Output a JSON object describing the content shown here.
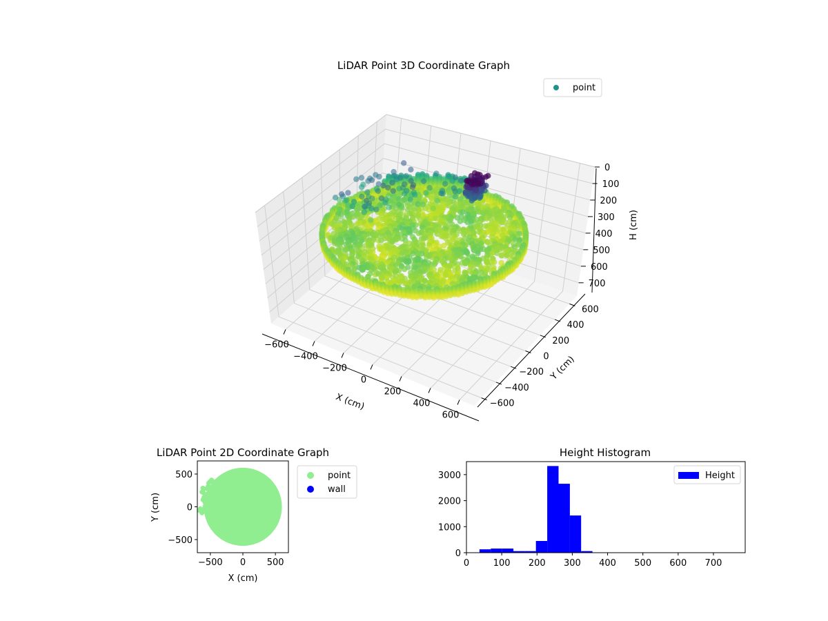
{
  "chart_data": [
    {
      "type": "scatter",
      "subtype": "3d",
      "title": "LiDAR Point 3D Coordinate Graph",
      "xlabel": "X (cm)",
      "ylabel": "Y (cm)",
      "zlabel": "H (cm)",
      "xlim": [
        -700,
        700
      ],
      "ylim": [
        -700,
        700
      ],
      "zlim": [
        0,
        780
      ],
      "zinverted": true,
      "xticks": [
        "−600",
        "−400",
        "−200",
        "0",
        "200",
        "400",
        "600"
      ],
      "yticks": [
        "−600",
        "−400",
        "−200",
        "0",
        "200",
        "400",
        "600"
      ],
      "zticks": [
        "0",
        "100",
        "200",
        "300",
        "400",
        "500",
        "600",
        "700"
      ],
      "legend": [
        "point"
      ],
      "legend_position": "top-right",
      "grid": true,
      "colormap": "viridis",
      "series": [
        {
          "name": "point",
          "wall_radius": 600,
          "wall_height_range": [
            260,
            320
          ],
          "floor_height_range": [
            250,
            320
          ],
          "cluster": {
            "x": [
              80,
              170
            ],
            "y": [
              300,
              420
            ],
            "h": [
              40,
              160
            ]
          }
        }
      ]
    },
    {
      "type": "scatter",
      "title": "LiDAR Point 2D Coordinate Graph",
      "xlabel": "X (cm)",
      "ylabel": "Y (cm)",
      "xlim": [
        -700,
        700
      ],
      "ylim": [
        -700,
        700
      ],
      "xticks": [
        "−500",
        "0",
        "500"
      ],
      "yticks": [
        "−500",
        "0",
        "500"
      ],
      "legend": [
        "point",
        "wall"
      ],
      "legend_position": "outside-right",
      "series": [
        {
          "name": "point",
          "color": "#90ee90",
          "radius": 600
        },
        {
          "name": "wall",
          "color": "#0000ff"
        }
      ]
    },
    {
      "type": "bar",
      "subtype": "histogram",
      "title": "Height Histogram",
      "xlim": [
        0,
        790
      ],
      "ylim": [
        0,
        3500
      ],
      "xticks": [
        "0",
        "100",
        "200",
        "300",
        "400",
        "500",
        "600",
        "700"
      ],
      "yticks": [
        "0",
        "1000",
        "2000",
        "3000"
      ],
      "legend": [
        "Height"
      ],
      "legend_position": "top-right",
      "color": "#0000ff",
      "bin_width": 32,
      "bins": [
        {
          "x0": 37,
          "count": 130
        },
        {
          "x0": 69,
          "count": 160
        },
        {
          "x0": 101,
          "count": 160
        },
        {
          "x0": 133,
          "count": 60
        },
        {
          "x0": 165,
          "count": 60
        },
        {
          "x0": 197,
          "count": 450
        },
        {
          "x0": 229,
          "count": 3330
        },
        {
          "x0": 261,
          "count": 2650
        },
        {
          "x0": 293,
          "count": 1430
        },
        {
          "x0": 325,
          "count": 60
        },
        {
          "x0": 357,
          "count": 8
        },
        {
          "x0": 389,
          "count": 5
        },
        {
          "x0": 421,
          "count": 4
        },
        {
          "x0": 453,
          "count": 3
        },
        {
          "x0": 485,
          "count": 3
        },
        {
          "x0": 517,
          "count": 2
        },
        {
          "x0": 549,
          "count": 2
        },
        {
          "x0": 581,
          "count": 2
        },
        {
          "x0": 613,
          "count": 1
        },
        {
          "x0": 645,
          "count": 1
        },
        {
          "x0": 677,
          "count": 1
        },
        {
          "x0": 709,
          "count": 1
        },
        {
          "x0": 741,
          "count": 1
        }
      ]
    }
  ]
}
